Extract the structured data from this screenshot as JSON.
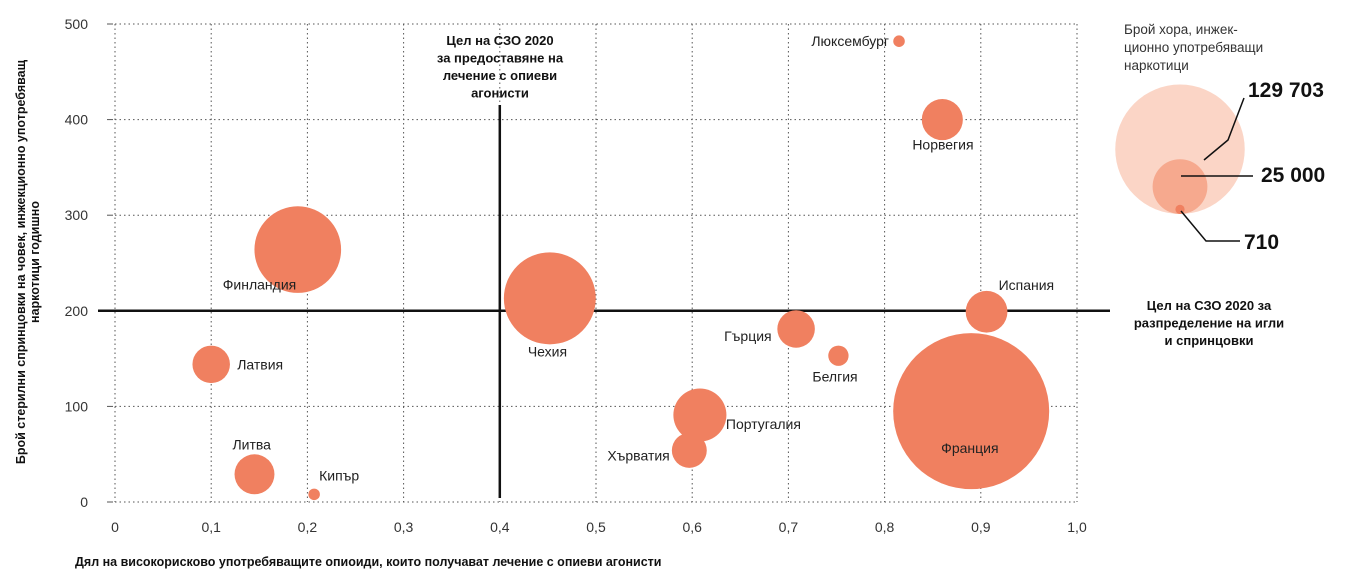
{
  "chart_data": {
    "type": "scatter",
    "xlabel": "Дял на високорисково употребяващите опиоиди, които получават лечение с опиеви агонисти",
    "ylabel": [
      "Брой стерилни спринцовки на човек, инжекционно употребяващ",
      "наркотици годишно"
    ],
    "xlim": [
      0,
      1.0
    ],
    "ylim": [
      0,
      500
    ],
    "x_ticks": [
      0,
      0.1,
      0.2,
      0.3,
      0.4,
      0.5,
      0.6,
      0.7,
      0.8,
      0.9,
      1.0
    ],
    "x_tick_labels": [
      "0",
      "0,1",
      "0,2",
      "0,3",
      "0,4",
      "0,5",
      "0,6",
      "0,7",
      "0,8",
      "0,9",
      "1,0"
    ],
    "y_ticks": [
      0,
      100,
      200,
      300,
      400,
      500
    ],
    "y_tick_labels": [
      "0",
      "100",
      "200",
      "300",
      "400",
      "500"
    ],
    "grid": "dotted",
    "bubble_color": "#f08060",
    "points": [
      {
        "label": "Люксембург",
        "x": 0.815,
        "y": 482,
        "size": 710
      },
      {
        "label": "Норвегия",
        "x": 0.86,
        "y": 400,
        "size": 9000
      },
      {
        "label": "Финландия",
        "x": 0.19,
        "y": 264,
        "size": 40000
      },
      {
        "label": "Чехия",
        "x": 0.452,
        "y": 213,
        "size": 45000
      },
      {
        "label": "Испания",
        "x": 0.906,
        "y": 199,
        "size": 9300
      },
      {
        "label": "Гърция",
        "x": 0.708,
        "y": 181,
        "size": 7500
      },
      {
        "label": "Белгия",
        "x": 0.752,
        "y": 153,
        "size": 2200
      },
      {
        "label": "Латвия",
        "x": 0.1,
        "y": 144,
        "size": 7500
      },
      {
        "label": "Португалия",
        "x": 0.608,
        "y": 91,
        "size": 15000
      },
      {
        "label": "Франция",
        "x": 0.89,
        "y": 95,
        "size": 129703
      },
      {
        "label": "Хърватия",
        "x": 0.597,
        "y": 54,
        "size": 6500
      },
      {
        "label": "Литва",
        "x": 0.145,
        "y": 29,
        "size": 8500
      },
      {
        "label": "Кипър",
        "x": 0.207,
        "y": 8,
        "size": 710
      }
    ],
    "reference_lines": [
      {
        "axis": "x",
        "value": 0.4,
        "label": [
          "Цел на СЗО 2020",
          "за предоставяне на",
          "лечение с опиеви",
          "агонисти"
        ]
      },
      {
        "axis": "y",
        "value": 200,
        "label": [
          "Цел на СЗО 2020 за",
          "разпределение на игли",
          "и спринцовки"
        ]
      }
    ],
    "legend": {
      "title": [
        "Брой хора, инжек-",
        "ционно употребяващи",
        "наркотици"
      ],
      "values": [
        129703,
        25000,
        710
      ],
      "value_labels": [
        "129 703",
        "25 000",
        "710"
      ],
      "colors": [
        "#fbd5c6",
        "#f6a98e",
        "#f08060"
      ],
      "position": "top-right"
    }
  }
}
